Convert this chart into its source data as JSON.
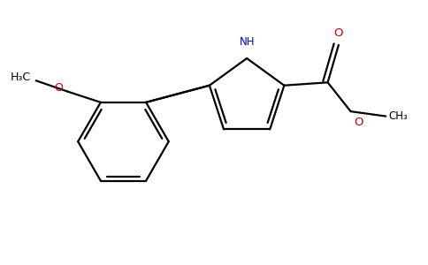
{
  "bg_color": "#ffffff",
  "bond_color": "#000000",
  "N_color": "#0000cc",
  "O_color": "#cc0000",
  "lw": 1.6,
  "figsize": [
    4.84,
    3.0
  ],
  "dpi": 100,
  "xlim": [
    -3.8,
    3.2
  ],
  "ylim": [
    -1.8,
    1.6
  ]
}
